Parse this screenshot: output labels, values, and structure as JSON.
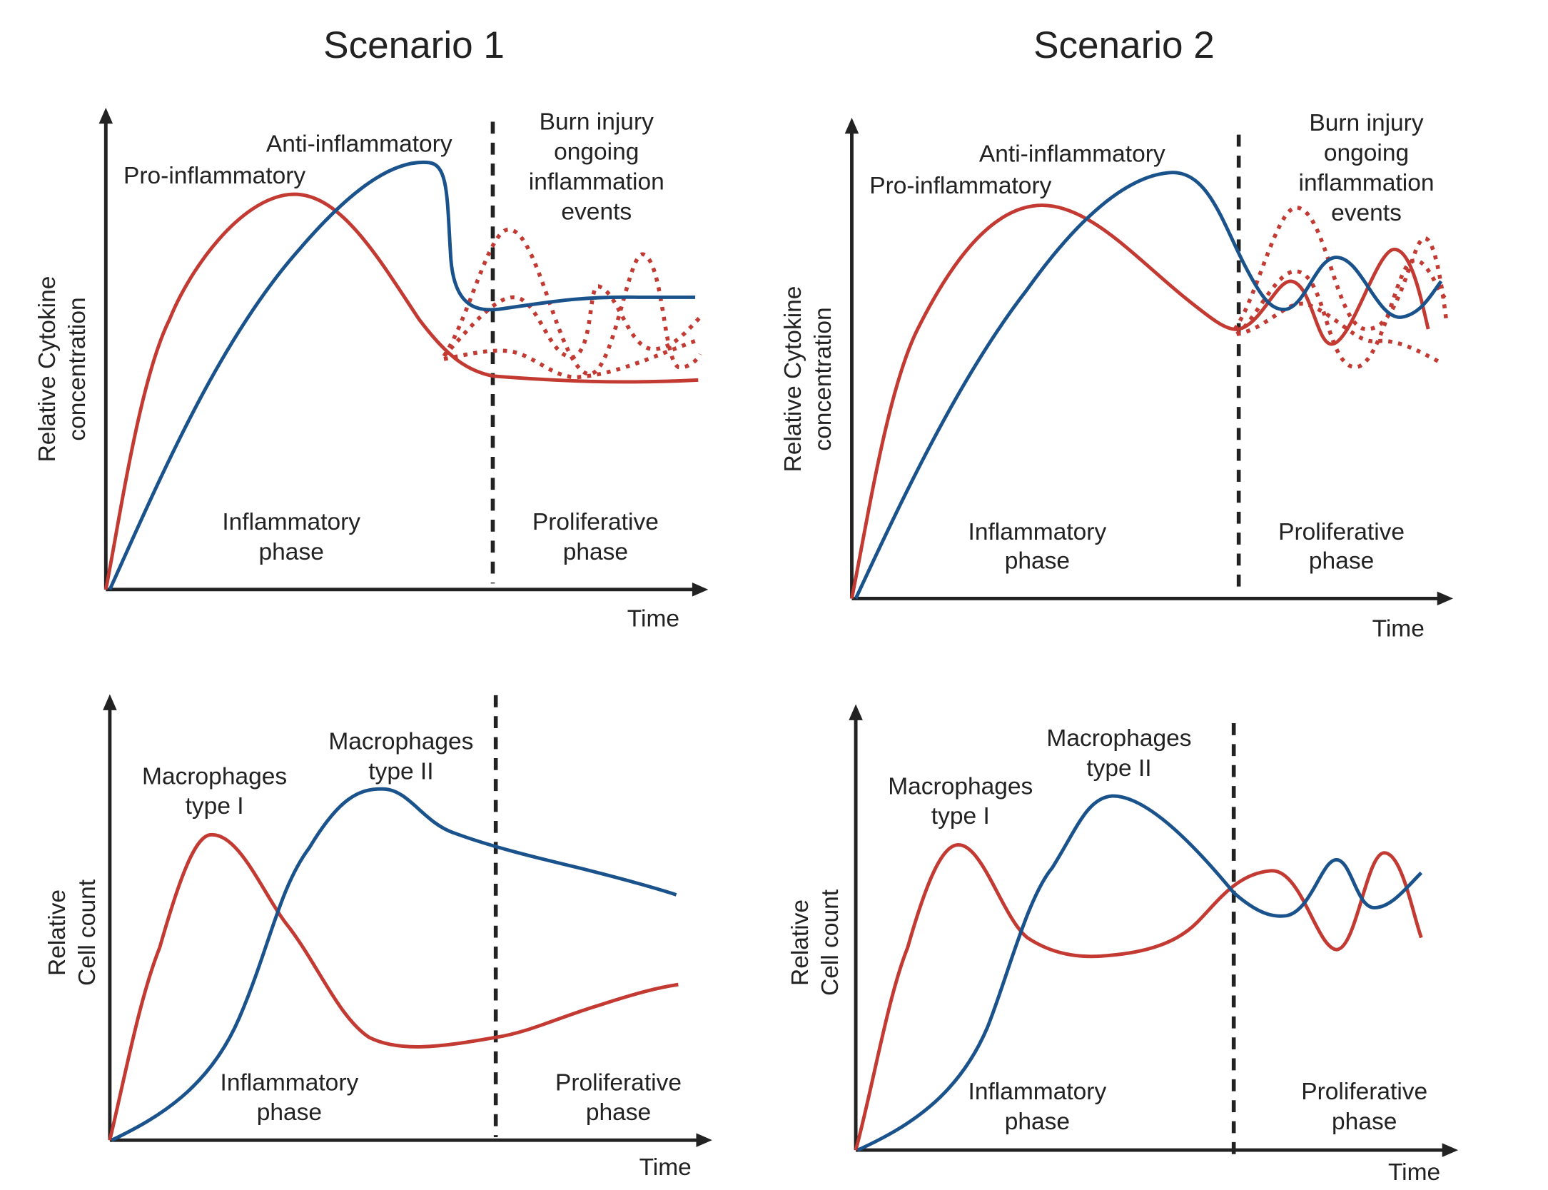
{
  "colors": {
    "pro_inflammatory": "#c33a33",
    "anti_inflammatory": "#1a528c",
    "text": "#222222"
  },
  "scenarios": [
    {
      "title": "Scenario 1"
    },
    {
      "title": "Scenario 2"
    }
  ],
  "panels": [
    {
      "ylabel": [
        "Relative Cytokine",
        "concentration"
      ],
      "xlabel": "Time",
      "red_label": "Pro-inflammatory",
      "blue_label": "Anti-inflammatory",
      "event_label": [
        "Burn injury",
        "ongoing",
        "inflammation",
        "events"
      ],
      "phase_left": [
        "Inflammatory",
        "phase"
      ],
      "phase_right": [
        "Proliferative",
        "phase"
      ]
    },
    {
      "ylabel": [
        "Relative Cytokine",
        "concentration"
      ],
      "xlabel": "Time",
      "red_label": "Pro-inflammatory",
      "blue_label": "Anti-inflammatory",
      "event_label": [
        "Burn injury",
        "ongoing",
        "inflammation",
        "events"
      ],
      "phase_left": [
        "Inflammatory",
        "phase"
      ],
      "phase_right": [
        "Proliferative",
        "phase"
      ]
    },
    {
      "ylabel": [
        "Relative",
        "Cell count"
      ],
      "xlabel": "Time",
      "red_label": [
        "Macrophages",
        "type I"
      ],
      "blue_label": [
        "Macrophages",
        "type II"
      ],
      "phase_left": [
        "Inflammatory",
        "phase"
      ],
      "phase_right": [
        "Proliferative",
        "phase"
      ]
    },
    {
      "ylabel": [
        "Relative",
        "Cell count"
      ],
      "xlabel": "Time",
      "red_label": [
        "Macrophages",
        "type I"
      ],
      "blue_label": [
        "Macrophages",
        "type II"
      ],
      "phase_left": [
        "Inflammatory",
        "phase"
      ],
      "phase_right": [
        "Proliferative",
        "phase"
      ]
    }
  ]
}
